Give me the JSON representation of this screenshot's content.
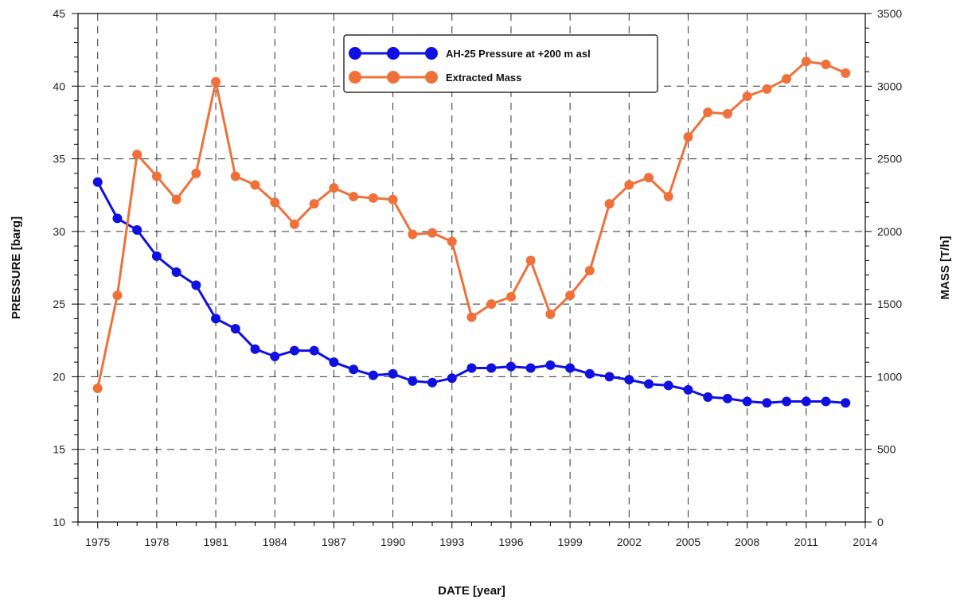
{
  "chart_data": {
    "type": "line",
    "xlabel": "DATE [year]",
    "ylabel": "PRESSURE [barg]",
    "y2label": "MASS [T/h]",
    "xlim": [
      1974,
      2014
    ],
    "ylim": [
      10,
      45
    ],
    "y2lim": [
      0,
      3500
    ],
    "x_ticks": [
      1975,
      1978,
      1981,
      1984,
      1987,
      1990,
      1993,
      1996,
      1999,
      2002,
      2005,
      2008,
      2011,
      2014
    ],
    "y_ticks": [
      10,
      15,
      20,
      25,
      30,
      35,
      40,
      45
    ],
    "y2_ticks": [
      0,
      500,
      1000,
      1500,
      2000,
      2500,
      3000,
      3500
    ],
    "grid": true,
    "legend_position": "top-center",
    "series": [
      {
        "name": "AH-25 Pressure at +200 m asl",
        "axis": "left",
        "color": "#1010e0",
        "x": [
          1975,
          1976,
          1977,
          1978,
          1979,
          1980,
          1981,
          1982,
          1983,
          1984,
          1985,
          1986,
          1987,
          1988,
          1989,
          1990,
          1991,
          1992,
          1993,
          1994,
          1995,
          1996,
          1997,
          1998,
          1999,
          2000,
          2001,
          2002,
          2003,
          2004,
          2005,
          2006,
          2007,
          2008,
          2009,
          2010,
          2011,
          2012,
          2013
        ],
        "values": [
          33.4,
          30.9,
          30.1,
          28.3,
          27.2,
          26.3,
          24.0,
          23.3,
          21.9,
          21.4,
          21.8,
          21.8,
          21.0,
          20.5,
          20.1,
          20.2,
          19.7,
          19.6,
          19.9,
          20.6,
          20.6,
          20.7,
          20.6,
          20.8,
          20.6,
          20.2,
          20.0,
          19.8,
          19.5,
          19.4,
          19.1,
          18.6,
          18.5,
          18.3,
          18.2,
          18.3,
          18.3,
          18.3,
          18.2
        ]
      },
      {
        "name": "Extracted Mass",
        "axis": "right",
        "color": "#f0703a",
        "x": [
          1975,
          1976,
          1977,
          1978,
          1979,
          1980,
          1981,
          1982,
          1983,
          1984,
          1985,
          1986,
          1987,
          1988,
          1989,
          1990,
          1991,
          1992,
          1993,
          1994,
          1995,
          1996,
          1997,
          1998,
          1999,
          2000,
          2001,
          2002,
          2003,
          2004,
          2005,
          2006,
          2007,
          2008,
          2009,
          2010,
          2011,
          2012,
          2013
        ],
        "values": [
          920,
          1560,
          2530,
          2380,
          2220,
          2400,
          3030,
          2380,
          2320,
          2200,
          2050,
          2190,
          2300,
          2240,
          2230,
          2220,
          1980,
          1990,
          1930,
          1410,
          1500,
          1550,
          1800,
          1430,
          1560,
          1730,
          2190,
          2320,
          2370,
          2240,
          2650,
          2820,
          2810,
          2930,
          2980,
          3050,
          3170,
          3150,
          3090
        ]
      }
    ]
  }
}
